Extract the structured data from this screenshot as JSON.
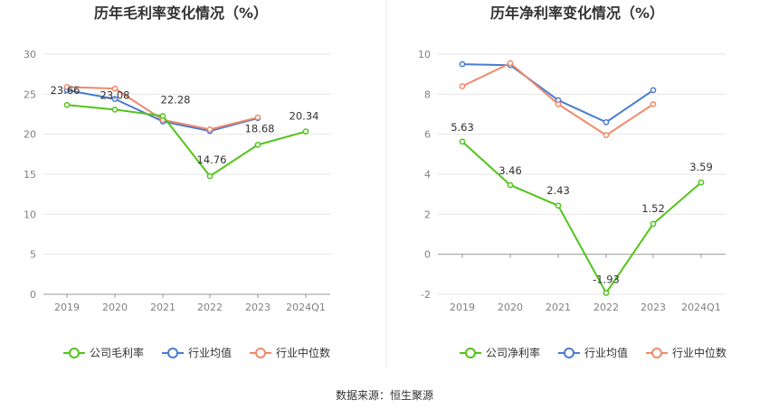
{
  "source": "数据来源：恒生聚源",
  "chart_data": [
    {
      "type": "line",
      "title": "历年毛利率变化情况（%）",
      "categories": [
        "2019",
        "2020",
        "2021",
        "2022",
        "2023",
        "2024Q1"
      ],
      "ylim": [
        0,
        30
      ],
      "yticks": [
        0,
        5,
        10,
        15,
        20,
        25,
        30
      ],
      "grid": true,
      "legend_position": "bottom",
      "series": [
        {
          "name": "公司毛利率",
          "color": "#52c41a",
          "values": [
            23.66,
            23.08,
            22.28,
            14.76,
            18.68,
            20.34
          ],
          "labels": [
            "23.66",
            "23.08",
            "22.28",
            "14.76",
            "18.68",
            "20.34"
          ]
        },
        {
          "name": "行业均值",
          "color": "#4a7bd0",
          "values": [
            25.5,
            24.4,
            21.6,
            20.4,
            22.0,
            null
          ]
        },
        {
          "name": "行业中位数",
          "color": "#f0896a",
          "values": [
            25.9,
            25.7,
            21.8,
            20.6,
            22.1,
            null
          ]
        }
      ]
    },
    {
      "type": "line",
      "title": "历年净利率变化情况（%）",
      "categories": [
        "2019",
        "2020",
        "2021",
        "2022",
        "2023",
        "2024Q1"
      ],
      "ylim": [
        -2,
        10
      ],
      "yticks": [
        -2,
        0,
        2,
        4,
        6,
        8,
        10
      ],
      "grid": true,
      "legend_position": "bottom",
      "series": [
        {
          "name": "公司净利率",
          "color": "#52c41a",
          "values": [
            5.63,
            3.46,
            2.43,
            -1.93,
            1.52,
            3.59
          ],
          "labels": [
            "5.63",
            "3.46",
            "2.43",
            "-1.93",
            "1.52",
            "3.59"
          ]
        },
        {
          "name": "行业均值",
          "color": "#4a7bd0",
          "values": [
            9.5,
            9.45,
            7.7,
            6.6,
            8.2,
            null
          ]
        },
        {
          "name": "行业中位数",
          "color": "#f0896a",
          "values": [
            8.4,
            9.55,
            7.5,
            5.95,
            7.5,
            null
          ]
        }
      ]
    }
  ]
}
